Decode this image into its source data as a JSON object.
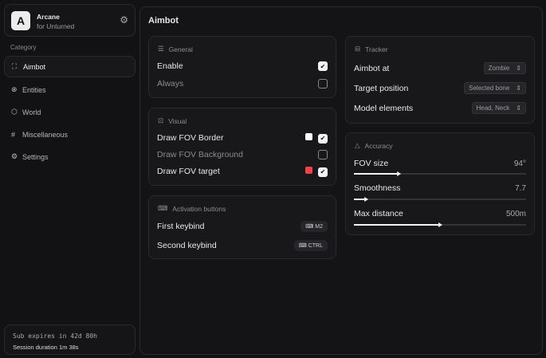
{
  "app": {
    "logo": "A",
    "title": "Arcane",
    "subtitle": "for Unturned"
  },
  "sidebar": {
    "category_label": "Category",
    "items": [
      {
        "label": "Aimbot",
        "icon": "crosshair-icon",
        "active": true
      },
      {
        "label": "Entities",
        "icon": "entities-icon"
      },
      {
        "label": "World",
        "icon": "globe-icon"
      },
      {
        "label": "Miscellaneous",
        "icon": "grid-icon"
      },
      {
        "label": "Settings",
        "icon": "gear-icon"
      }
    ]
  },
  "footer": {
    "sub": "Sub expires in 42d 80h",
    "session": "Session duration 1m 38s"
  },
  "main": {
    "title": "Aimbot",
    "general": {
      "title": "General",
      "enable": "Enable",
      "enable_checked": true,
      "always": "Always",
      "always_checked": false
    },
    "visual": {
      "title": "Visual",
      "border": "Draw FOV Border",
      "border_color": "#ffffff",
      "bg": "Draw FOV Background",
      "target": "Draw FOV target",
      "target_color": "#ef4444"
    },
    "activation": {
      "title": "Activation buttons",
      "first": "First keybind",
      "first_key": "M2",
      "second": "Second keybind",
      "second_key": "CTRL"
    },
    "tracker": {
      "title": "Tracker",
      "aim_at": "Aimbot at",
      "aim_at_val": "Zombie",
      "target_pos": "Target position",
      "target_pos_val": "Selected bone",
      "model": "Model elements",
      "model_val": "Head, Neck"
    },
    "accuracy": {
      "title": "Accuracy",
      "fov": "FOV size",
      "fov_val": "94°",
      "fov_pct": 26,
      "smooth": "Smoothness",
      "smooth_val": "7.7",
      "smooth_pct": 7,
      "dist": "Max distance",
      "dist_val": "500m",
      "dist_pct": 50
    }
  }
}
